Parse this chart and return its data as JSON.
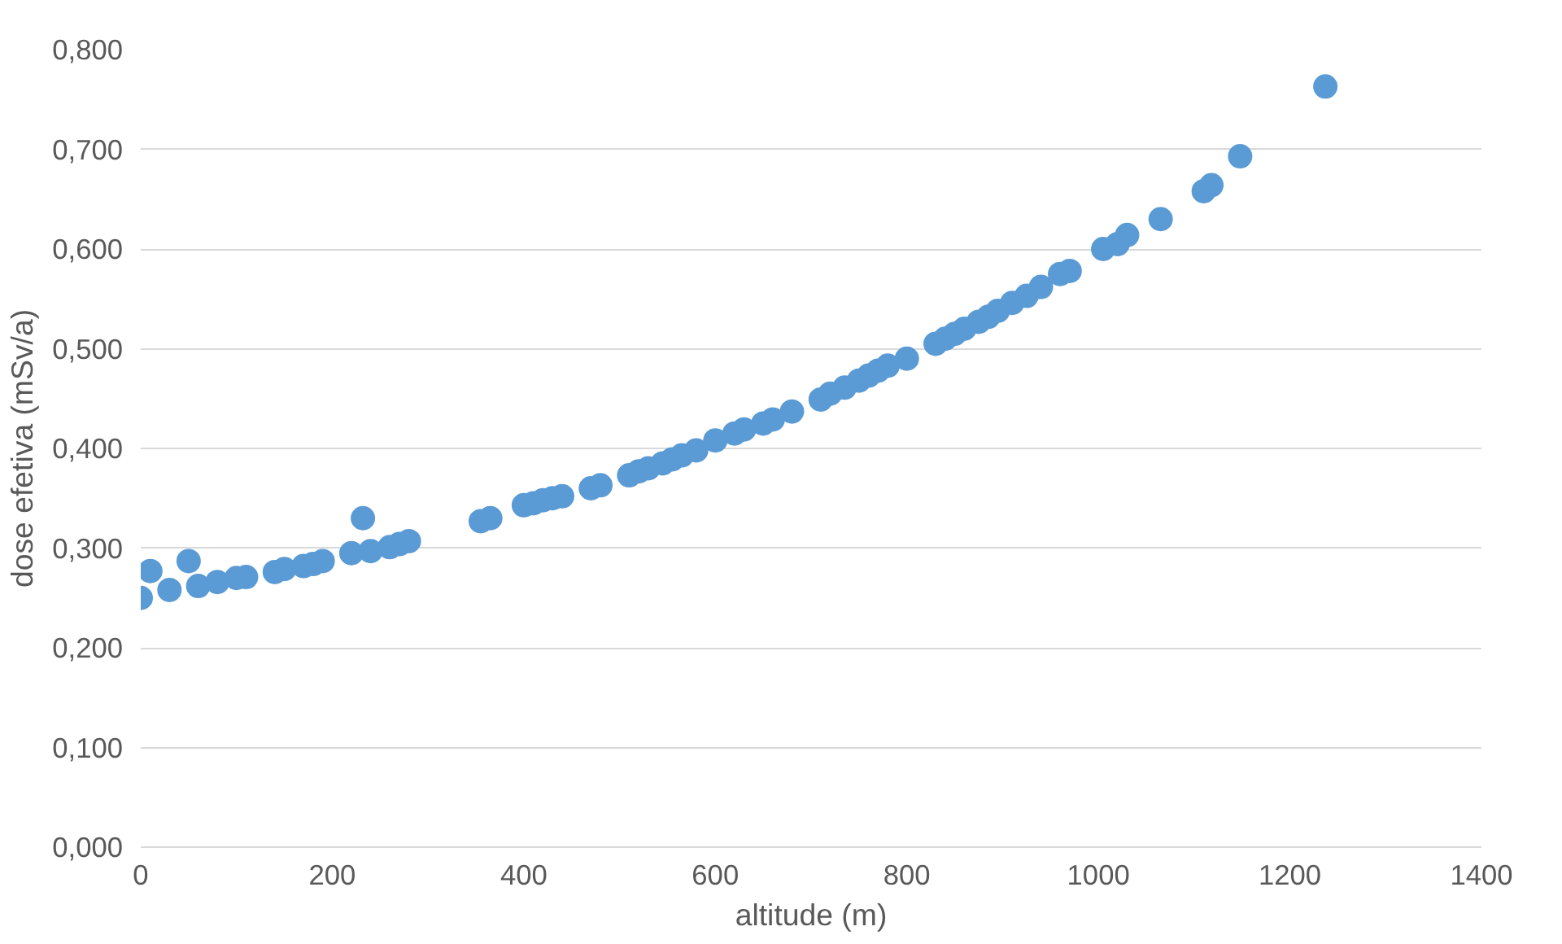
{
  "chart_data": {
    "type": "scatter",
    "xlabel": "altitude (m)",
    "ylabel": "dose efetiva (mSv/a)",
    "x": [
      0,
      10,
      30,
      50,
      60,
      80,
      100,
      110,
      140,
      150,
      170,
      180,
      190,
      220,
      232,
      240,
      260,
      270,
      280,
      355,
      365,
      400,
      410,
      420,
      430,
      440,
      470,
      480,
      510,
      520,
      530,
      545,
      555,
      565,
      580,
      600,
      620,
      630,
      650,
      660,
      680,
      710,
      720,
      735,
      750,
      760,
      770,
      780,
      800,
      830,
      840,
      850,
      860,
      875,
      885,
      895,
      910,
      925,
      940,
      960,
      970,
      1005,
      1020,
      1030,
      1065,
      1110,
      1118,
      1148,
      1237
    ],
    "values": [
      0.25,
      0.277,
      0.258,
      0.287,
      0.262,
      0.266,
      0.27,
      0.271,
      0.276,
      0.279,
      0.282,
      0.284,
      0.287,
      0.295,
      0.33,
      0.297,
      0.301,
      0.304,
      0.307,
      0.327,
      0.33,
      0.343,
      0.345,
      0.348,
      0.35,
      0.352,
      0.36,
      0.363,
      0.373,
      0.377,
      0.38,
      0.385,
      0.389,
      0.393,
      0.398,
      0.408,
      0.415,
      0.419,
      0.425,
      0.429,
      0.437,
      0.449,
      0.455,
      0.461,
      0.468,
      0.473,
      0.478,
      0.483,
      0.49,
      0.505,
      0.51,
      0.515,
      0.52,
      0.527,
      0.532,
      0.538,
      0.546,
      0.553,
      0.562,
      0.575,
      0.578,
      0.6,
      0.605,
      0.614,
      0.63,
      0.658,
      0.664,
      0.693,
      0.763
    ],
    "color": "#5b9bd5",
    "marker": "circle",
    "grid": "y",
    "xlim": [
      0,
      1400
    ],
    "xticks": [
      0,
      200,
      400,
      600,
      800,
      1000,
      1200,
      1400
    ],
    "ylim": [
      0,
      0.8
    ],
    "yticks": [
      {
        "value": 0,
        "label": "0,000"
      },
      {
        "value": 0.1,
        "label": "0,100"
      },
      {
        "value": 0.2,
        "label": "0,200"
      },
      {
        "value": 0.3,
        "label": "0,300"
      },
      {
        "value": 0.4,
        "label": "0,400"
      },
      {
        "value": 0.5,
        "label": "0,500"
      },
      {
        "value": 0.6,
        "label": "0,600"
      },
      {
        "value": 0.7,
        "label": "0,700"
      },
      {
        "value": 0.8,
        "label": "0,800"
      }
    ]
  }
}
